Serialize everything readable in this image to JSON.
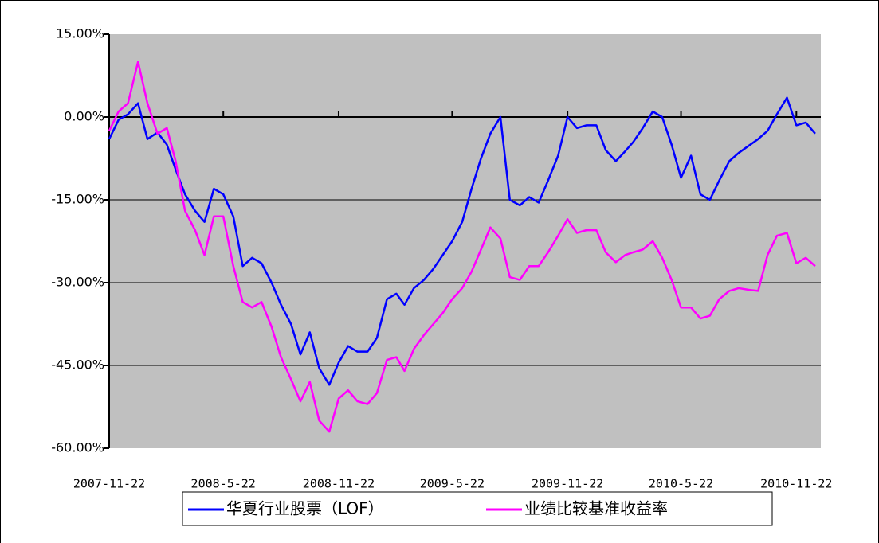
{
  "chart_data": {
    "type": "line",
    "xlim": [
      "2007-11-22",
      "2010-12-31"
    ],
    "xticks": [
      "2007-11-22",
      "2008-5-22",
      "2008-11-22",
      "2009-5-22",
      "2009-11-22",
      "2010-5-22",
      "2010-11-22"
    ],
    "ylim": [
      -60,
      15
    ],
    "yticks": [
      {
        "value": 15,
        "label": "15.00%"
      },
      {
        "value": 0,
        "label": "0.00%"
      },
      {
        "value": -15,
        "label": "-15.00%"
      },
      {
        "value": -30,
        "label": "-30.00%"
      },
      {
        "value": -45,
        "label": "-45.00%"
      },
      {
        "value": -60,
        "label": "-60.00%"
      }
    ],
    "grid": true,
    "legend": "bottom",
    "x": [
      "2007-11-22",
      "2007-12-7",
      "2007-12-22",
      "2008-1-7",
      "2008-1-22",
      "2008-2-7",
      "2008-2-22",
      "2008-3-7",
      "2008-3-22",
      "2008-4-7",
      "2008-4-22",
      "2008-5-7",
      "2008-5-22",
      "2008-6-7",
      "2008-6-22",
      "2008-7-7",
      "2008-7-22",
      "2008-8-7",
      "2008-8-22",
      "2008-9-7",
      "2008-9-22",
      "2008-10-7",
      "2008-10-22",
      "2008-11-7",
      "2008-11-22",
      "2008-12-7",
      "2008-12-22",
      "2009-1-7",
      "2009-1-22",
      "2009-2-7",
      "2009-2-22",
      "2009-3-7",
      "2009-3-22",
      "2009-4-7",
      "2009-4-22",
      "2009-5-7",
      "2009-5-22",
      "2009-6-7",
      "2009-6-22",
      "2009-7-7",
      "2009-7-22",
      "2009-8-7",
      "2009-8-22",
      "2009-9-7",
      "2009-9-22",
      "2009-10-7",
      "2009-10-22",
      "2009-11-7",
      "2009-11-22",
      "2009-12-7",
      "2009-12-22",
      "2010-1-7",
      "2010-1-22",
      "2010-2-7",
      "2010-2-22",
      "2010-3-7",
      "2010-3-22",
      "2010-4-7",
      "2010-4-22",
      "2010-5-7",
      "2010-5-22",
      "2010-6-7",
      "2010-6-22",
      "2010-7-7",
      "2010-7-22",
      "2010-8-7",
      "2010-8-22",
      "2010-9-7",
      "2010-9-22",
      "2010-10-7",
      "2010-10-22",
      "2010-11-7",
      "2010-11-22",
      "2010-12-7",
      "2010-12-22"
    ],
    "series": [
      {
        "name": "华夏行业股票（LOF）",
        "color": "#0000ff",
        "values": [
          -4,
          -0.5,
          0.5,
          2.5,
          -4,
          -2.8,
          -5,
          -9.5,
          -14,
          -17,
          -19,
          -13,
          -14,
          -18,
          -27,
          -25.5,
          -26.5,
          -30,
          -34,
          -37.5,
          -43,
          -39,
          -45.5,
          -48.5,
          -44.5,
          -41.5,
          -42.5,
          -42.5,
          -40,
          -33,
          -32,
          -34,
          -31,
          -29.5,
          -27.5,
          -25,
          -22.5,
          -19,
          -13,
          -7.5,
          -3,
          0,
          -15,
          -16,
          -14.5,
          -15.5,
          -11.5,
          -7,
          0,
          -2,
          -1.5,
          -1.5,
          -6,
          -8,
          -6.2,
          -4.5,
          -2,
          1,
          0,
          -5,
          -11,
          -7,
          -14,
          -15,
          -11.5,
          -8,
          -6.5,
          -5.2,
          -4,
          -2.5,
          0.5,
          3.5,
          -1.5,
          -1,
          -3
        ]
      },
      {
        "name": "业绩比较基准收益率",
        "color": "#ff00ff",
        "values": [
          -2.5,
          1,
          2.5,
          10,
          2.5,
          -3,
          -2,
          -8,
          -17,
          -20.5,
          -25,
          -18,
          -18,
          -27,
          -33.5,
          -34.5,
          -33.5,
          -38,
          -43.5,
          -47.5,
          -51.5,
          -48,
          -55,
          -57,
          -51,
          -49.5,
          -51.5,
          -52,
          -50,
          -44,
          -43.5,
          -46,
          -42,
          -39.5,
          -37.5,
          -35.5,
          -33,
          -31,
          -28,
          -24,
          -20,
          -22,
          -29,
          -29.5,
          -27,
          -27,
          -24.5,
          -21.5,
          -18.5,
          -21,
          -20.5,
          -20.5,
          -24.5,
          -26.3,
          -25,
          -24.5,
          -24,
          -22.5,
          -25.5,
          -29.5,
          -34.5,
          -34.5,
          -36.5,
          -36,
          -33,
          -31.5,
          -31,
          -31.3,
          -31.5,
          -25,
          -21.5,
          -21,
          -26.5,
          -25.5,
          -27
        ]
      }
    ]
  }
}
